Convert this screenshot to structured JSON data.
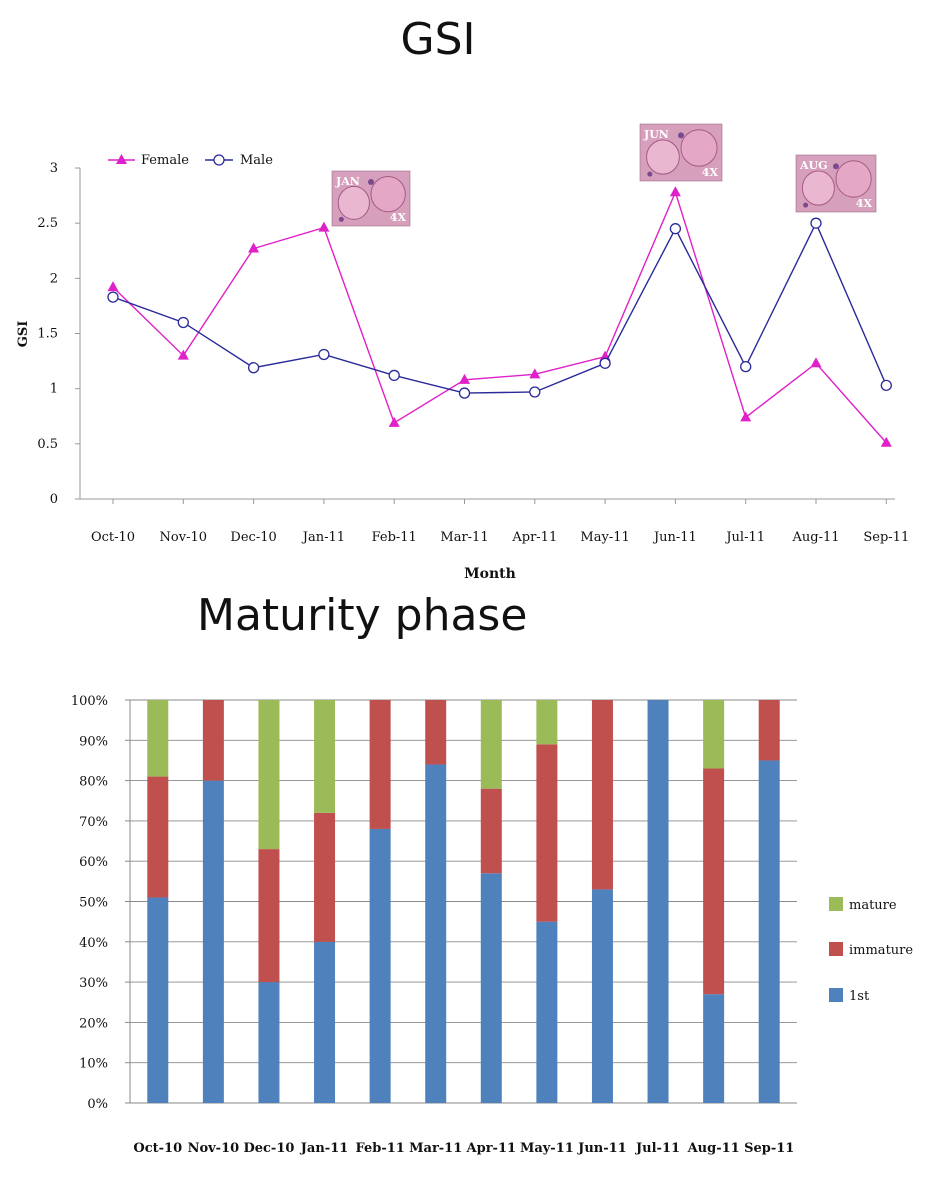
{
  "gsi_title": "GSI",
  "maturity_title": "Maturity phase",
  "chart_data": [
    {
      "type": "line",
      "title": "GSI",
      "xlabel": "Month",
      "ylabel": "GSI",
      "categories": [
        "Oct-10",
        "Nov-10",
        "Dec-10",
        "Jan-11",
        "Feb-11",
        "Mar-11",
        "Apr-11",
        "May-11",
        "Jun-11",
        "Jul-11",
        "Aug-11",
        "Sep-11"
      ],
      "ylim": [
        0,
        3
      ],
      "yticks": [
        "0",
        "0.5",
        "1",
        "1.5",
        "2",
        "2.5",
        "3"
      ],
      "grid": false,
      "legend_position": "top-left",
      "series": [
        {
          "name": "Female",
          "marker": "filled-triangle",
          "color": "#e020c8",
          "values": [
            1.92,
            1.3,
            2.27,
            2.46,
            0.69,
            1.08,
            1.13,
            1.29,
            2.78,
            0.74,
            1.23,
            0.51
          ]
        },
        {
          "name": "Male",
          "marker": "open-circle",
          "color": "#2a2a9a",
          "values": [
            1.83,
            1.6,
            1.19,
            1.31,
            1.12,
            0.96,
            0.97,
            1.23,
            2.45,
            1.2,
            2.5,
            1.03
          ]
        }
      ],
      "annotations": [
        {
          "category": "Jan-11",
          "month_label": "JAN",
          "magnification": "4X"
        },
        {
          "category": "Jun-11",
          "month_label": "JUN",
          "magnification": "4X"
        },
        {
          "category": "Aug-11",
          "month_label": "AUG",
          "magnification": "4X"
        }
      ]
    },
    {
      "type": "bar",
      "stacked": "percent",
      "title": "Maturity phase",
      "categories": [
        "Oct-10",
        "Nov-10",
        "Dec-10",
        "Jan-11",
        "Feb-11",
        "Mar-11",
        "Apr-11",
        "May-11",
        "Jun-11",
        "Jul-11",
        "Aug-11",
        "Sep-11"
      ],
      "ylim": [
        0,
        100
      ],
      "yticks": [
        "0%",
        "10%",
        "20%",
        "30%",
        "40%",
        "50%",
        "60%",
        "70%",
        "80%",
        "90%",
        "100%"
      ],
      "grid": true,
      "legend_position": "right",
      "legend_order": [
        "mature",
        "immature",
        "1st"
      ],
      "series": [
        {
          "name": "1st",
          "color": "#4f81bd",
          "values": [
            51,
            80,
            30,
            40,
            68,
            84,
            57,
            45,
            53,
            100,
            27,
            85
          ]
        },
        {
          "name": "immature",
          "color": "#c0504d",
          "values": [
            30,
            20,
            33,
            32,
            32,
            16,
            21,
            44,
            47,
            0,
            56,
            15
          ]
        },
        {
          "name": "mature",
          "color": "#9bbb59",
          "values": [
            19,
            0,
            37,
            28,
            0,
            0,
            22,
            11,
            0,
            0,
            17,
            0
          ]
        }
      ]
    }
  ]
}
